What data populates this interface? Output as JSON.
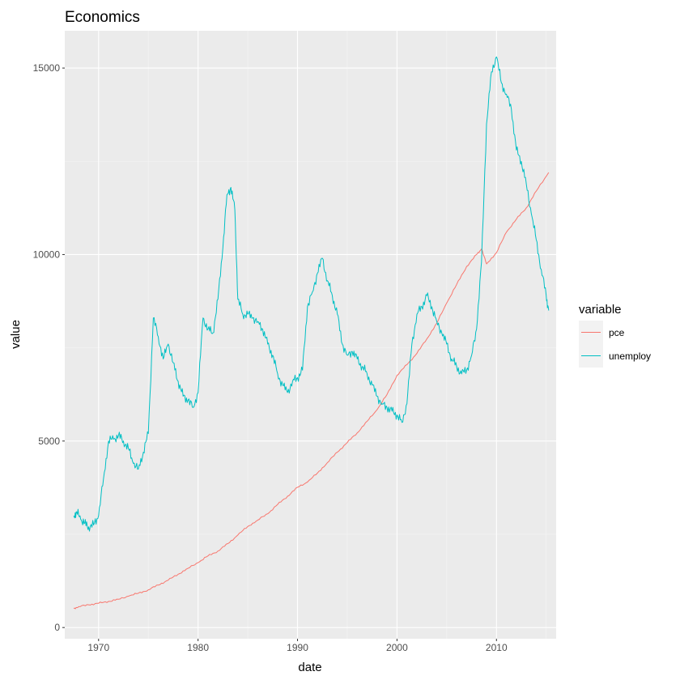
{
  "chart_data": {
    "type": "line",
    "title": "Economics",
    "xlabel": "date",
    "ylabel": "value",
    "x_ticks": [
      1970,
      1980,
      1990,
      2000,
      2010
    ],
    "y_ticks": [
      0,
      5000,
      10000,
      15000
    ],
    "xlim": [
      1966.6,
      2016.0
    ],
    "ylim": [
      -300,
      16000
    ],
    "grid": true,
    "legend_title": "variable",
    "legend_position": "right",
    "series": [
      {
        "name": "pce",
        "color": "#F8766D",
        "x": [
          1967.5,
          1968,
          1969,
          1970,
          1971,
          1972,
          1973,
          1974,
          1975,
          1976,
          1977,
          1978,
          1979,
          1980,
          1981,
          1982,
          1983,
          1984,
          1985,
          1986,
          1987,
          1988,
          1989,
          1990,
          1991,
          1992,
          1993,
          1994,
          1995,
          1996,
          1997,
          1998,
          1999,
          2000,
          2001,
          2002,
          2003,
          2004,
          2005,
          2006,
          2007,
          2008,
          2008.5,
          2009,
          2010,
          2011,
          2012,
          2013,
          2014,
          2015.25
        ],
        "y": [
          510,
          560,
          610,
          650,
          700,
          760,
          840,
          920,
          1010,
          1140,
          1270,
          1430,
          1590,
          1740,
          1920,
          2050,
          2250,
          2480,
          2710,
          2880,
          3050,
          3300,
          3520,
          3760,
          3900,
          4140,
          4420,
          4700,
          4960,
          5220,
          5530,
          5840,
          6250,
          6760,
          7050,
          7350,
          7740,
          8160,
          8700,
          9200,
          9680,
          10000,
          10150,
          9750,
          10050,
          10600,
          10950,
          11250,
          11700,
          12200
        ]
      },
      {
        "name": "unemploy",
        "color": "#00BFC4",
        "x": [
          1967.5,
          1967.8,
          1968.2,
          1968.6,
          1969.0,
          1969.5,
          1970.0,
          1970.5,
          1971.0,
          1971.5,
          1972.0,
          1972.5,
          1973.0,
          1973.5,
          1974.0,
          1974.5,
          1975.0,
          1975.5,
          1976.0,
          1976.5,
          1977.0,
          1977.5,
          1978.0,
          1978.5,
          1979.0,
          1979.5,
          1980.0,
          1980.5,
          1981.0,
          1981.5,
          1982.0,
          1982.5,
          1982.9,
          1983.3,
          1983.7,
          1984.0,
          1984.5,
          1985.0,
          1985.5,
          1986.0,
          1986.5,
          1987.0,
          1987.5,
          1988.0,
          1988.5,
          1989.0,
          1989.5,
          1990.0,
          1990.5,
          1991.0,
          1991.5,
          1992.0,
          1992.5,
          1993.0,
          1993.5,
          1994.0,
          1994.5,
          1995.0,
          1995.5,
          1996.0,
          1996.5,
          1997.0,
          1997.5,
          1998.0,
          1998.5,
          1999.0,
          1999.5,
          2000.0,
          2000.5,
          2001.0,
          2001.5,
          2002.0,
          2002.5,
          2003.0,
          2003.5,
          2004.0,
          2004.5,
          2005.0,
          2005.5,
          2006.0,
          2006.5,
          2007.0,
          2007.5,
          2008.0,
          2008.5,
          2009.0,
          2009.5,
          2010.0,
          2010.5,
          2011.0,
          2011.5,
          2012.0,
          2012.5,
          2013.0,
          2013.5,
          2014.0,
          2014.5,
          2015.0,
          2015.25
        ],
        "y": [
          3000,
          3100,
          2900,
          2800,
          2700,
          2750,
          3000,
          4000,
          5000,
          5050,
          5150,
          5000,
          4800,
          4400,
          4250,
          4700,
          5200,
          8300,
          7800,
          7200,
          7600,
          7100,
          6600,
          6200,
          6100,
          5900,
          6300,
          8300,
          8000,
          7900,
          8800,
          10200,
          11600,
          11800,
          11200,
          8800,
          8400,
          8400,
          8300,
          8200,
          8000,
          7600,
          7300,
          6800,
          6500,
          6300,
          6600,
          6700,
          6900,
          8600,
          9000,
          9500,
          9900,
          9300,
          8900,
          8400,
          7600,
          7300,
          7400,
          7200,
          7000,
          6800,
          6500,
          6200,
          6000,
          5900,
          5800,
          5700,
          5500,
          6000,
          7600,
          8400,
          8600,
          8900,
          8600,
          8200,
          7900,
          7600,
          7200,
          7000,
          6800,
          6900,
          7300,
          8000,
          9800,
          13500,
          14900,
          15300,
          14600,
          14300,
          13900,
          12800,
          12500,
          11900,
          11100,
          10400,
          9600,
          8900,
          8500
        ]
      }
    ]
  }
}
